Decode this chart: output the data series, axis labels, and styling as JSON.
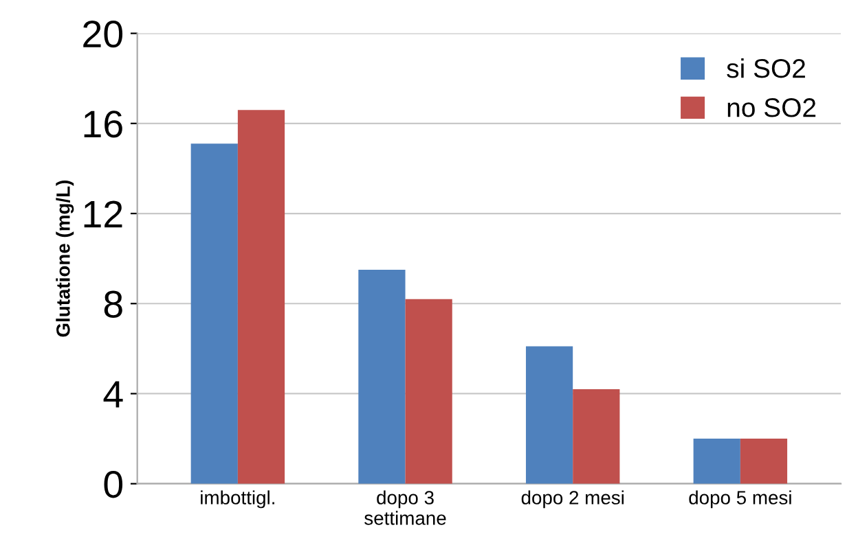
{
  "chart_data": {
    "type": "bar",
    "ylabel": "Glutatione (mg/L)",
    "categories": [
      "imbottigl.",
      "dopo 3\nsettimane",
      "dopo 2 mesi",
      "dopo 5 mesi"
    ],
    "series": [
      {
        "name": "si SO2",
        "color": "#4f81bd",
        "values": [
          15.1,
          9.5,
          6.1,
          2.0
        ]
      },
      {
        "name": "no SO2",
        "color": "#c0504d",
        "values": [
          16.6,
          8.2,
          4.2,
          2.0
        ]
      }
    ],
    "ylim": [
      0,
      20
    ],
    "yticks": [
      0,
      4,
      8,
      12,
      16,
      20
    ],
    "grid": "y",
    "legend": "top right"
  }
}
